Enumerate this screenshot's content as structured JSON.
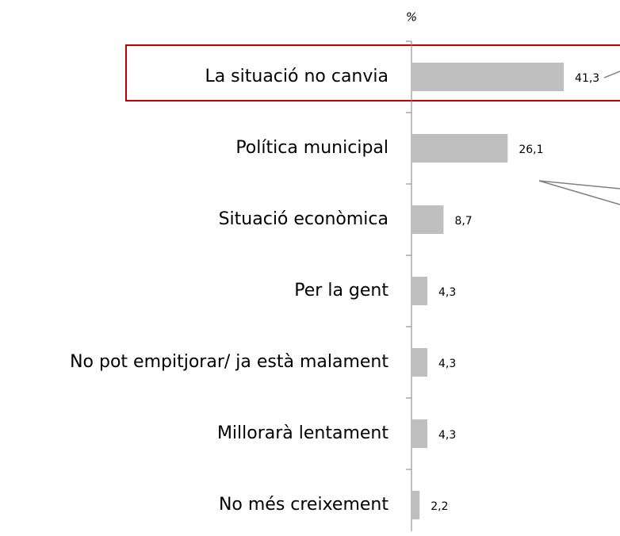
{
  "chart_data": {
    "type": "bar",
    "orientation": "horizontal",
    "unit_label": "%",
    "categories": [
      "La situació no canvia",
      "Política municipal",
      "Situació econòmica",
      "Per la gent",
      "No pot empitjorar/ ja està malament",
      "Millorarà lentament",
      "No més creixement"
    ],
    "values": [
      41.3,
      26.1,
      8.7,
      4.3,
      4.3,
      4.3,
      2.2
    ],
    "value_labels": [
      "41,3",
      "26,1",
      "8,7",
      "4,3",
      "4,3",
      "4,3",
      "2,2"
    ],
    "color": "#bfbfbf",
    "xlim": [
      0,
      50
    ],
    "highlight_color": "#c00000"
  }
}
